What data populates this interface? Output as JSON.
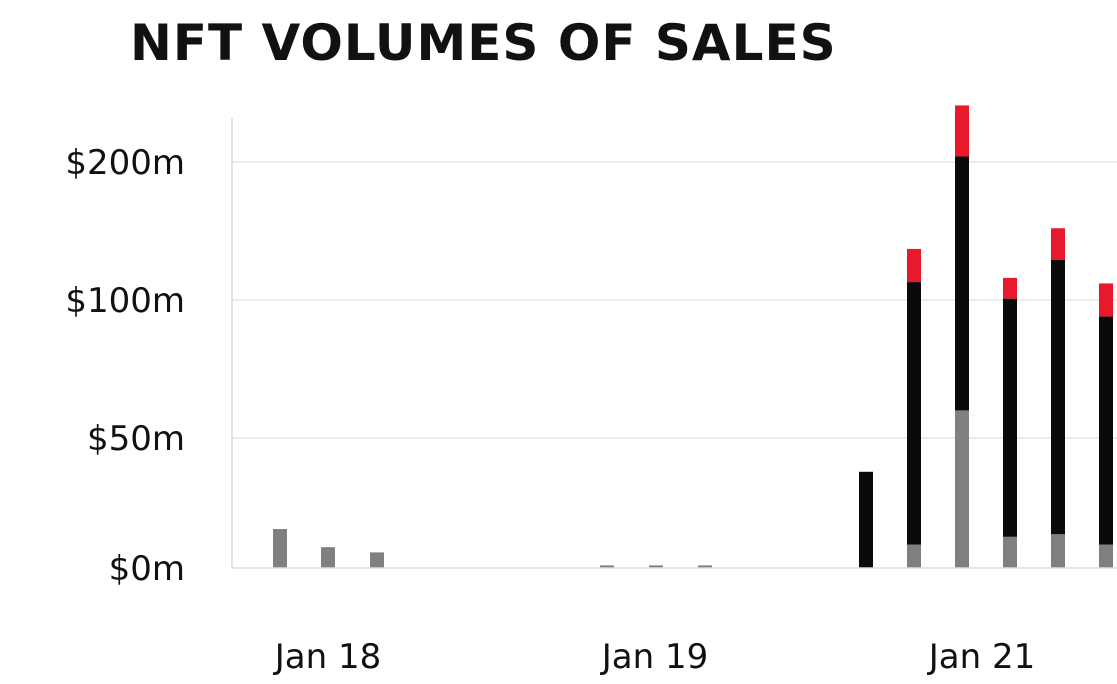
{
  "chart_data": {
    "type": "bar",
    "stacked": true,
    "title": "NFT VOLUMES OF SALES",
    "y_tick_labels": [
      "$0m",
      "$50m",
      "$100m",
      "$200m"
    ],
    "x_tick_labels": [
      "Jan 18",
      "Jan 19",
      "Jan 21"
    ],
    "grid": true,
    "legend": "none",
    "colors": [
      "#808080",
      "#0a0a0a",
      "#e8192c"
    ],
    "series": [
      {
        "values": [
          15,
          8,
          6,
          1,
          1,
          1,
          0,
          9,
          60,
          12,
          13,
          9
        ]
      },
      {
        "values": [
          0,
          0,
          0,
          0,
          0,
          0,
          37,
          104,
          144,
          89,
          116,
          85
        ]
      },
      {
        "values": [
          0,
          0,
          0,
          0,
          0,
          0,
          0,
          24,
          37,
          15,
          23,
          18
        ]
      }
    ]
  }
}
